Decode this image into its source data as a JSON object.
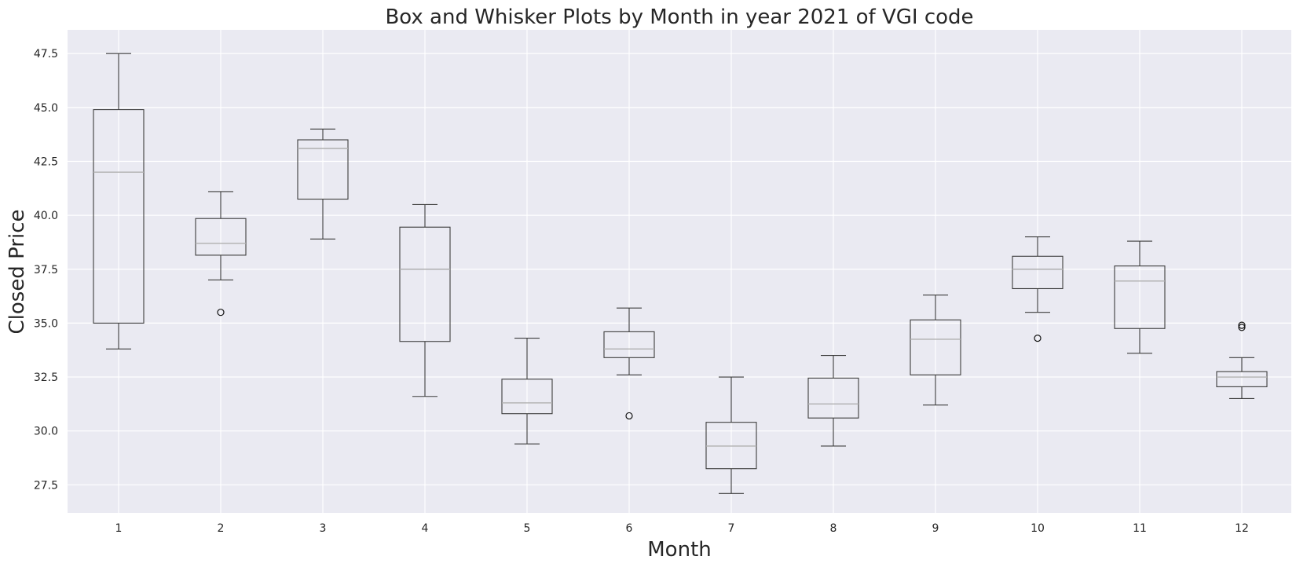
{
  "chart_data": {
    "type": "box",
    "title": "Box and Whisker Plots by Month in year 2021 of VGI code",
    "xlabel": "Month",
    "ylabel": "Closed Price",
    "ylim": [
      26.2,
      48.6
    ],
    "yticks": [
      "27.5",
      "30.0",
      "32.5",
      "35.0",
      "37.5",
      "40.0",
      "42.5",
      "45.0",
      "47.5"
    ],
    "grid": true,
    "categories": [
      "1",
      "2",
      "3",
      "4",
      "5",
      "6",
      "7",
      "8",
      "9",
      "10",
      "11",
      "12"
    ],
    "boxes": [
      {
        "whisker_low": 33.8,
        "q1": 35.0,
        "median": 42.0,
        "q3": 44.9,
        "whisker_high": 47.5,
        "outliers": []
      },
      {
        "whisker_low": 37.0,
        "q1": 38.15,
        "median": 38.7,
        "q3": 39.85,
        "whisker_high": 41.1,
        "outliers": [
          35.5
        ]
      },
      {
        "whisker_low": 38.9,
        "q1": 40.75,
        "median": 43.1,
        "q3": 43.5,
        "whisker_high": 44.0,
        "outliers": []
      },
      {
        "whisker_low": 31.6,
        "q1": 34.15,
        "median": 37.5,
        "q3": 39.45,
        "whisker_high": 40.5,
        "outliers": []
      },
      {
        "whisker_low": 29.4,
        "q1": 30.8,
        "median": 31.3,
        "q3": 32.4,
        "whisker_high": 34.3,
        "outliers": []
      },
      {
        "whisker_low": 32.6,
        "q1": 33.4,
        "median": 33.8,
        "q3": 34.6,
        "whisker_high": 35.7,
        "outliers": [
          30.7
        ]
      },
      {
        "whisker_low": 27.1,
        "q1": 28.25,
        "median": 29.3,
        "q3": 30.4,
        "whisker_high": 32.5,
        "outliers": []
      },
      {
        "whisker_low": 29.3,
        "q1": 30.6,
        "median": 31.25,
        "q3": 32.45,
        "whisker_high": 33.5,
        "outliers": []
      },
      {
        "whisker_low": 31.2,
        "q1": 32.6,
        "median": 34.25,
        "q3": 35.15,
        "whisker_high": 36.3,
        "outliers": []
      },
      {
        "whisker_low": 35.5,
        "q1": 36.6,
        "median": 37.5,
        "q3": 38.1,
        "whisker_high": 39.0,
        "outliers": [
          34.3
        ]
      },
      {
        "whisker_low": 33.6,
        "q1": 34.75,
        "median": 36.95,
        "q3": 37.65,
        "whisker_high": 38.8,
        "outliers": []
      },
      {
        "whisker_low": 31.5,
        "q1": 32.05,
        "median": 32.5,
        "q3": 32.75,
        "whisker_high": 33.4,
        "outliers": [
          34.8,
          34.9
        ]
      }
    ],
    "colors": {
      "plot_background": "#eaeaf2",
      "grid": "#ffffff",
      "box_edge": "#3d3d3d",
      "median": "#b0b0b0"
    }
  }
}
